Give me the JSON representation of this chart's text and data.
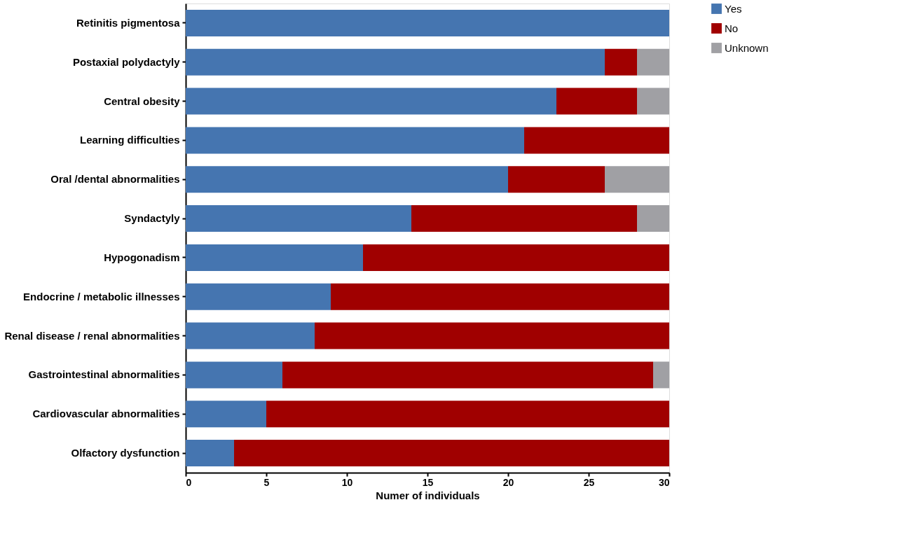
{
  "chart_data": {
    "type": "bar",
    "orientation": "horizontal",
    "stacked": true,
    "xlabel": "Numer of individuals",
    "categories": [
      "Retinitis pigmentosa",
      "Postaxial polydactyly",
      "Central obesity",
      "Learning difficulties",
      "Oral /dental abnormalities",
      "Syndactyly",
      "Hypogonadism",
      "Endocrine / metabolic illnesses",
      "Renal disease / renal abnormalities",
      "Gastrointestinal abnormalities",
      "Cardiovascular abnormalities",
      "Olfactory dysfunction"
    ],
    "series": [
      {
        "name": "Yes",
        "color": "#4575b0",
        "values": [
          30,
          26,
          23,
          21,
          20,
          14,
          11,
          9,
          8,
          6,
          5,
          3
        ]
      },
      {
        "name": "No",
        "color": "#a00000",
        "values": [
          0,
          2,
          5,
          9,
          6,
          14,
          19,
          21,
          22,
          23,
          25,
          27
        ]
      },
      {
        "name": "Unknown",
        "color": "#a0a0a4",
        "values": [
          0,
          2,
          2,
          0,
          4,
          2,
          0,
          0,
          0,
          1,
          0,
          0
        ]
      }
    ],
    "xlim": [
      0,
      30
    ],
    "xticks": [
      0,
      5,
      10,
      15,
      20,
      25,
      30
    ],
    "grid": false,
    "legend": "top right"
  }
}
